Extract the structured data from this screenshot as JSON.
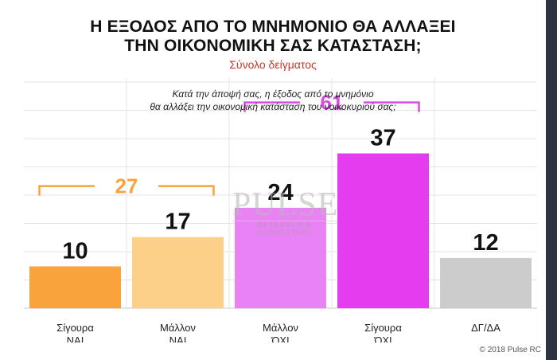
{
  "header": {
    "title_line1": "Η ΕΞΟΔΟΣ ΑΠΟ ΤΟ ΜΝΗΜΟΝΙΟ ΘΑ ΑΛΛΑΞΕΙ",
    "title_line2": "ΤΗΝ ΟΙΚΟΝΟΜΙΚΗ ΣΑΣ ΚΑΤΑΣΤΑΣΗ;",
    "subtitle": "Σύνολο δείγματος",
    "question_line1": "Κατά την άποψή σας, η έξοδος από το μνημόνιο",
    "question_line2": "θα αλλάξει την οικονομική κατάσταση του νοικοκυριού σας;"
  },
  "watermark": {
    "line1": "PULSE",
    "line2": "RESEARCH & CONSULTING"
  },
  "copyright": "© 2018 Pulse RC",
  "chart_data": {
    "type": "bar",
    "categories": [
      [
        "Σίγουρα",
        "ΝΑΙ"
      ],
      [
        "Μάλλον",
        "ΝΑΙ"
      ],
      [
        "Μάλλον",
        "ΌΧΙ"
      ],
      [
        "Σίγουρα",
        "ΌΧΙ"
      ],
      [
        "ΔΓ/ΔΑ"
      ]
    ],
    "values": [
      10,
      17,
      24,
      37,
      12
    ],
    "colors": [
      "#f8a33c",
      "#fdd08a",
      "#e882f5",
      "#e63cf0",
      "#cccccc"
    ],
    "ylim": [
      0,
      55
    ],
    "grid": true,
    "groups": [
      {
        "label": "27",
        "from": 0,
        "to": 1,
        "color": "#f7a43c"
      },
      {
        "label": "61",
        "from": 2,
        "to": 3,
        "color": "#d94be6"
      }
    ]
  }
}
